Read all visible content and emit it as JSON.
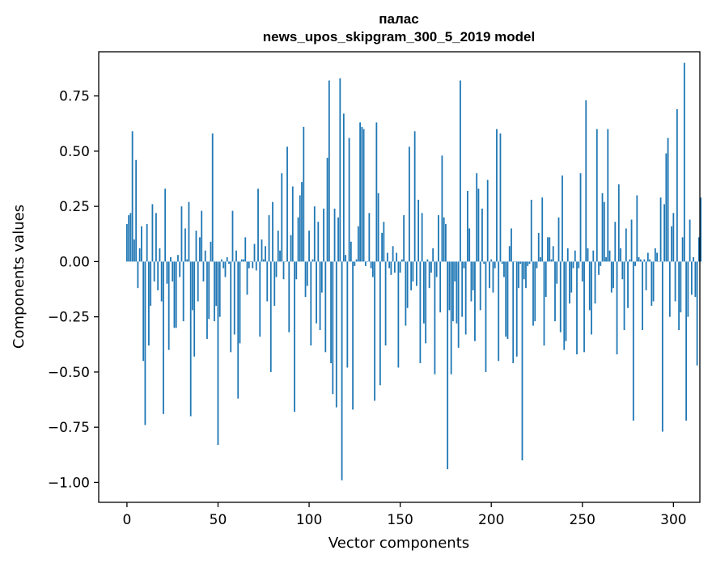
{
  "chart_data": {
    "type": "bar",
    "title_line1": "палас",
    "title_line2": "news_upos_skipgram_300_5_2019 model",
    "xlabel": "Vector components",
    "ylabel": "Components values",
    "xlim": [
      -15.5,
      314.5
    ],
    "ylim": [
      -1.09,
      0.95
    ],
    "xticks": [
      0,
      50,
      100,
      150,
      200,
      250,
      300
    ],
    "xtick_labels": [
      "0",
      "50",
      "100",
      "150",
      "200",
      "250",
      "300"
    ],
    "yticks": [
      -1.0,
      -0.75,
      -0.5,
      -0.25,
      0.0,
      0.25,
      0.5,
      0.75
    ],
    "ytick_labels": [
      "−1.00",
      "−0.75",
      "−0.50",
      "−0.25",
      "0.00",
      "0.25",
      "0.50",
      "0.75"
    ],
    "bar_color": "#1f77b4",
    "values": [
      0.17,
      0.21,
      0.22,
      0.59,
      0.1,
      0.46,
      -0.12,
      0.06,
      0.16,
      -0.45,
      -0.74,
      0.17,
      -0.38,
      -0.2,
      0.26,
      -0.09,
      0.22,
      -0.13,
      0.06,
      -0.18,
      -0.69,
      0.33,
      -0.1,
      -0.4,
      0.02,
      -0.09,
      -0.3,
      -0.3,
      0.03,
      -0.07,
      0.25,
      -0.27,
      0.15,
      0.01,
      0.27,
      -0.7,
      -0.22,
      -0.43,
      0.14,
      -0.18,
      0.11,
      0.23,
      -0.09,
      0.05,
      -0.35,
      -0.26,
      0.09,
      0.58,
      -0.27,
      -0.2,
      -0.83,
      -0.25,
      0.01,
      -0.03,
      -0.07,
      0.02,
      -0.01,
      -0.41,
      0.23,
      -0.33,
      0.05,
      -0.62,
      -0.37,
      0.01,
      0.01,
      0.11,
      -0.15,
      -0.03,
      0.0,
      -0.03,
      0.08,
      -0.04,
      0.33,
      -0.34,
      0.1,
      0.01,
      0.07,
      -0.18,
      0.21,
      -0.5,
      0.27,
      -0.2,
      -0.07,
      0.14,
      0.05,
      0.4,
      -0.08,
      0.0,
      0.52,
      -0.32,
      0.12,
      0.34,
      -0.68,
      -0.08,
      0.2,
      0.3,
      0.36,
      0.61,
      -0.16,
      -0.11,
      0.14,
      -0.38,
      0.01,
      0.25,
      -0.28,
      0.18,
      -0.31,
      -0.14,
      0.24,
      -0.41,
      0.47,
      0.82,
      -0.46,
      -0.6,
      0.24,
      -0.66,
      0.2,
      0.83,
      -0.99,
      0.67,
      0.03,
      -0.48,
      0.56,
      0.09,
      -0.67,
      -0.02,
      0.01,
      0.16,
      0.63,
      0.61,
      0.6,
      -0.02,
      0.0,
      0.22,
      -0.03,
      -0.07,
      -0.63,
      0.63,
      0.31,
      -0.56,
      0.13,
      0.18,
      -0.38,
      0.04,
      -0.03,
      -0.06,
      0.07,
      -0.05,
      0.04,
      -0.48,
      -0.05,
      0.01,
      0.21,
      -0.29,
      -0.21,
      0.52,
      -0.13,
      -0.09,
      0.59,
      -0.11,
      0.28,
      -0.46,
      0.22,
      -0.28,
      -0.37,
      0.01,
      -0.12,
      -0.05,
      0.06,
      -0.51,
      -0.07,
      0.21,
      -0.23,
      0.48,
      0.2,
      0.17,
      -0.94,
      -0.22,
      -0.51,
      -0.27,
      -0.09,
      -0.28,
      -0.39,
      0.82,
      -0.25,
      -0.03,
      -0.33,
      0.32,
      0.15,
      -0.18,
      -0.13,
      -0.36,
      0.4,
      0.33,
      -0.22,
      0.24,
      -0.01,
      -0.5,
      0.37,
      -0.12,
      0.01,
      -0.14,
      -0.03,
      0.6,
      -0.45,
      0.58,
      -0.01,
      -0.07,
      -0.34,
      -0.35,
      0.07,
      0.15,
      -0.46,
      0.0,
      -0.43,
      -0.12,
      -0.01,
      -0.9,
      -0.08,
      -0.12,
      -0.02,
      -0.01,
      0.28,
      -0.29,
      -0.27,
      -0.03,
      0.13,
      0.02,
      0.29,
      -0.38,
      -0.16,
      0.11,
      0.11,
      0.01,
      0.07,
      -0.27,
      -0.1,
      0.2,
      -0.32,
      0.39,
      -0.4,
      -0.36,
      0.06,
      -0.19,
      -0.14,
      -0.03,
      0.05,
      -0.42,
      -0.03,
      0.4,
      -0.09,
      -0.41,
      0.73,
      0.06,
      -0.22,
      -0.33,
      0.05,
      -0.19,
      0.6,
      -0.06,
      -0.02,
      0.31,
      0.27,
      0.02,
      0.6,
      0.05,
      -0.14,
      -0.12,
      0.18,
      -0.42,
      0.35,
      0.06,
      -0.08,
      -0.31,
      0.15,
      -0.21,
      0.01,
      0.19,
      -0.72,
      -0.02,
      0.3,
      0.02,
      0.01,
      -0.31,
      0.01,
      -0.13,
      0.04,
      0.01,
      -0.2,
      -0.18,
      0.06,
      0.04,
      0.0,
      0.29,
      -0.77,
      0.26,
      0.49,
      0.56,
      -0.25,
      0.16,
      0.22,
      -0.18,
      0.69,
      -0.31,
      -0.23,
      0.11,
      0.9,
      -0.72,
      -0.25,
      0.19,
      -0.15,
      0.02,
      -0.16,
      -0.47,
      0.11,
      0.29
    ]
  }
}
